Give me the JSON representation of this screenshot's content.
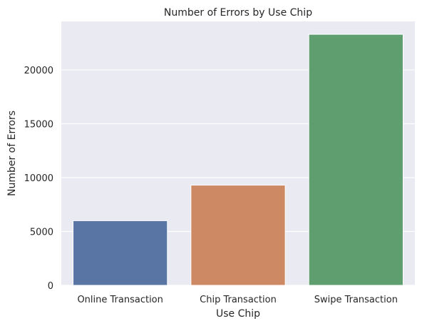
{
  "chart_data": {
    "type": "bar",
    "title": "Number of Errors by Use Chip",
    "xlabel": "Use Chip",
    "ylabel": "Number of Errors",
    "categories": [
      "Online Transaction",
      "Chip Transaction",
      "Swipe Transaction"
    ],
    "values": [
      6000,
      9300,
      23300
    ],
    "colors": [
      "#5875a4",
      "#cc8963",
      "#5f9e6e"
    ],
    "ylim": [
      0,
      24500
    ],
    "yticks": [
      0,
      5000,
      10000,
      15000,
      20000
    ],
    "ytick_labels": [
      "0",
      "5000",
      "10000",
      "15000",
      "20000"
    ],
    "grid": true,
    "background": "#eaeaf2"
  }
}
